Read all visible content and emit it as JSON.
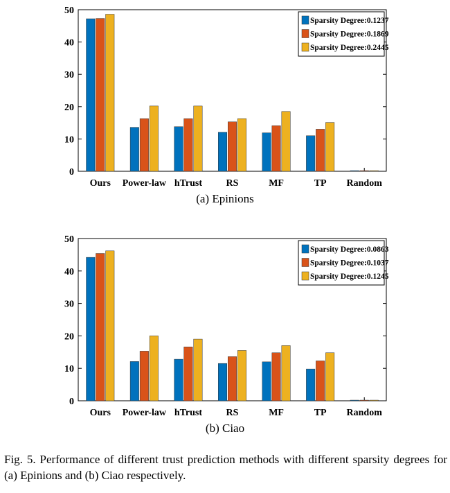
{
  "chart_data": [
    {
      "type": "bar",
      "categories": [
        "Ours",
        "Power-law",
        "hTrust",
        "RS",
        "MF",
        "TP",
        "Random"
      ],
      "series": [
        {
          "name": "Sparsity Degree:0.1237",
          "color": "#0072BD",
          "values": [
            47.2,
            13.6,
            13.8,
            12.1,
            11.9,
            11.0,
            0.2
          ]
        },
        {
          "name": "Sparsity Degree:0.1869",
          "color": "#D95319",
          "values": [
            47.3,
            16.3,
            16.3,
            15.3,
            14.1,
            13.0,
            0.2
          ]
        },
        {
          "name": "Sparsity Degree:0.2445",
          "color": "#EDB120",
          "values": [
            48.6,
            20.2,
            20.2,
            16.3,
            18.5,
            15.1,
            0.2
          ]
        }
      ],
      "ylim": [
        0,
        50
      ],
      "yticks": [
        0,
        10,
        20,
        30,
        40,
        50
      ],
      "legend_position": "top-right",
      "subcaption": "(a)  Epinions"
    },
    {
      "type": "bar",
      "categories": [
        "Ours",
        "Power-law",
        "hTrust",
        "RS",
        "MF",
        "TP",
        "Random"
      ],
      "series": [
        {
          "name": "Sparsity Degree:0.0863",
          "color": "#0072BD",
          "values": [
            44.2,
            12.1,
            12.8,
            11.5,
            12.0,
            9.8,
            0.2
          ]
        },
        {
          "name": "Sparsity Degree:0.1037",
          "color": "#D95319",
          "values": [
            45.4,
            15.3,
            16.6,
            13.6,
            14.8,
            12.3,
            0.2
          ]
        },
        {
          "name": "Sparsity Degree:0.1245",
          "color": "#EDB120",
          "values": [
            46.2,
            20.0,
            19.0,
            15.5,
            17.0,
            14.8,
            0.2
          ]
        }
      ],
      "ylim": [
        0,
        50
      ],
      "yticks": [
        0,
        10,
        20,
        30,
        40,
        50
      ],
      "legend_position": "top-right",
      "subcaption": "(b)  Ciao"
    }
  ],
  "caption": "Fig. 5.  Performance of different trust prediction methods with different sparsity degrees for (a) Epinions and (b) Ciao respectively."
}
